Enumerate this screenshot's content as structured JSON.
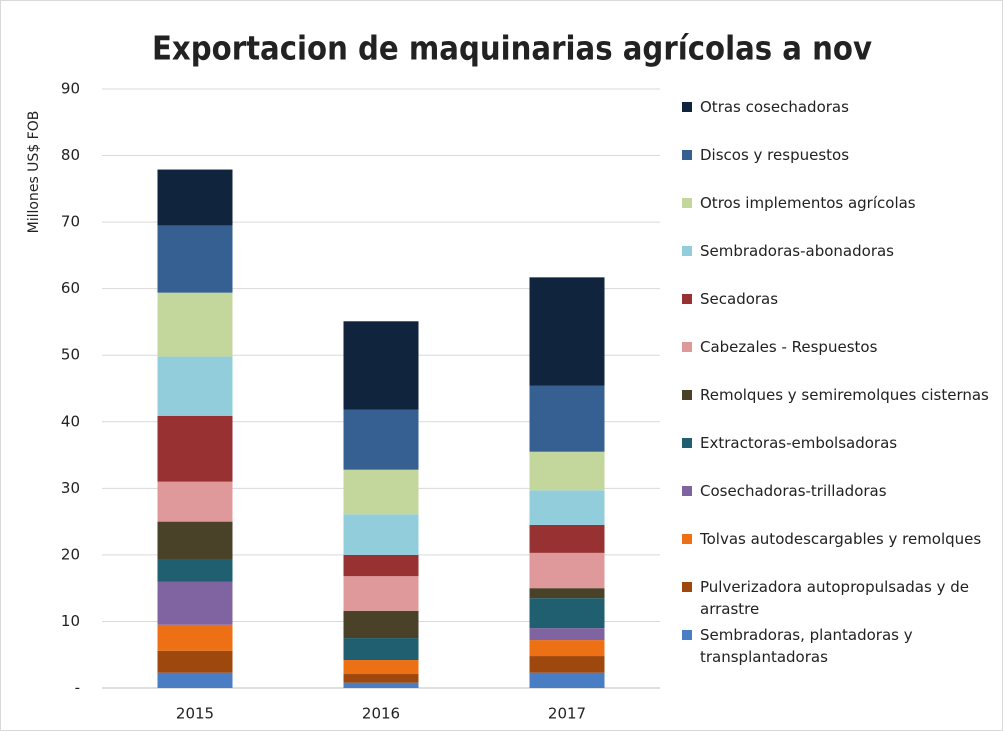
{
  "chart_data": {
    "type": "stacked_bar",
    "title": "Exportacion de maquinarias agrícolas a nov",
    "y_label": "Millones US$ FOB",
    "categories": [
      "2015",
      "2016",
      "2017"
    ],
    "ylim": [
      0,
      90
    ],
    "yticks": [
      {
        "value": 0,
        "label": "-"
      },
      10,
      20,
      30,
      40,
      50,
      60,
      70,
      80,
      90
    ],
    "grid": true,
    "legend": "right",
    "series": [
      {
        "name": "Sembradoras, plantadoras y transplantadoras",
        "color": "#4a7ec4",
        "values": [
          2.3,
          0.8,
          2.3
        ]
      },
      {
        "name": "Pulverizadora autopropulsadas y de arrastre",
        "color": "#9e480e",
        "values": [
          3.3,
          1.3,
          2.5
        ]
      },
      {
        "name": "Tolvas autodescargables y remolques",
        "color": "#ed7014",
        "values": [
          3.9,
          2.1,
          2.4
        ]
      },
      {
        "name": "Cosechadoras-trilladoras",
        "color": "#8064a2",
        "values": [
          6.5,
          0,
          1.8
        ]
      },
      {
        "name": "Extractoras-embolsadoras",
        "color": "#1f5f6f",
        "values": [
          3.3,
          3.3,
          4.5
        ]
      },
      {
        "name": "Remolques y semiremolques cisternas",
        "color": "#4a4228",
        "values": [
          5.7,
          4.1,
          1.5
        ]
      },
      {
        "name": "Cabezales - Respuestos",
        "color": "#e0999a",
        "values": [
          6.0,
          5.2,
          5.3
        ]
      },
      {
        "name": "Secadoras",
        "color": "#983232",
        "values": [
          9.9,
          3.2,
          4.2
        ]
      },
      {
        "name": "Sembradoras-abonadoras",
        "color": "#92cddc",
        "values": [
          8.9,
          6.1,
          5.2
        ]
      },
      {
        "name": "Otros implementos agrícolas",
        "color": "#c3d69b",
        "values": [
          9.6,
          6.7,
          5.8
        ]
      },
      {
        "name": "Discos y respuestos",
        "color": "#366092",
        "values": [
          10.1,
          9.0,
          9.9
        ]
      },
      {
        "name": "Otras cosechadoras",
        "color": "#10243e",
        "values": [
          8.4,
          13.3,
          16.3
        ]
      }
    ]
  }
}
